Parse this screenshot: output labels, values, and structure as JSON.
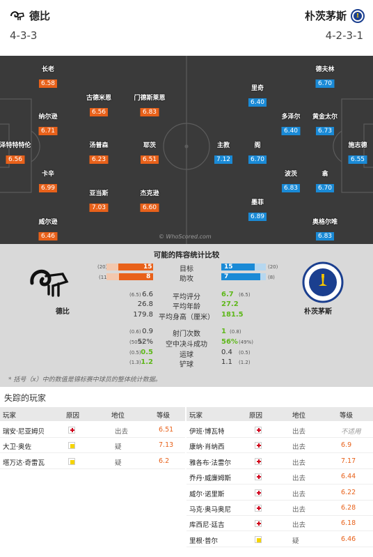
{
  "home": {
    "name": "德比",
    "formation": "4-3-3",
    "players": [
      {
        "name": "长老",
        "rating": "6.58"
      },
      {
        "name": "古德米恩",
        "rating": "6.56"
      },
      {
        "name": "门德斯莱恩",
        "rating": "6.83"
      },
      {
        "name": "纳尔逊",
        "rating": "6.71"
      },
      {
        "name": "泽特特特伦",
        "rating": "6.56"
      },
      {
        "name": "汤普森",
        "rating": "6.23"
      },
      {
        "name": "耶茨",
        "rating": "6.51"
      },
      {
        "name": "卡辛",
        "rating": "6.99"
      },
      {
        "name": "亚当斯",
        "rating": "7.03"
      },
      {
        "name": "杰克逊",
        "rating": "6.60"
      },
      {
        "name": "威尔逊",
        "rating": "6.46"
      }
    ]
  },
  "away": {
    "name": "朴茨茅斯",
    "formation": "4-2-3-1",
    "badge_text": "PORTSMOUTH FOOTBALL CLUB",
    "players": [
      {
        "name": "德夫林",
        "rating": "6.70"
      },
      {
        "name": "里奇",
        "rating": "6.40"
      },
      {
        "name": "多泽尔",
        "rating": "6.40"
      },
      {
        "name": "黄金太尔",
        "rating": "6.73"
      },
      {
        "name": "主教",
        "rating": "7.12"
      },
      {
        "name": "阁",
        "rating": "6.70"
      },
      {
        "name": "施志德",
        "rating": "6.55"
      },
      {
        "name": "波茨",
        "rating": "6.83"
      },
      {
        "name": "翕",
        "rating": "6.70"
      },
      {
        "name": "墨菲",
        "rating": "6.89"
      },
      {
        "name": "奥格尔唯",
        "rating": "6.83"
      }
    ]
  },
  "watermark": "© WhoScored.com",
  "comparison": {
    "title": "可能的阵容统计比较",
    "bars": [
      {
        "label": "目标",
        "home": "15",
        "home_sub": "(20)",
        "away": "15",
        "away_sub": "(20)",
        "home_frac": 0.75,
        "away_frac": 0.75
      },
      {
        "label": "助攻",
        "home": "8",
        "home_sub": "(11)",
        "away": "7",
        "away_sub": "(8)",
        "home_frac": 0.73,
        "away_frac": 0.875
      }
    ],
    "rows": [
      {
        "label": "平均评分",
        "home": "6.6",
        "home_sub": "(6.5)",
        "away": "6.7",
        "away_sub": "(6.5)",
        "home_green": false,
        "away_green": true
      },
      {
        "label": "平均年龄",
        "home": "26.8",
        "home_sub": "",
        "away": "27.2",
        "away_sub": "",
        "home_green": false,
        "away_green": true
      },
      {
        "label": "平均身高（厘米）",
        "home": "179.8",
        "home_sub": "",
        "away": "181.5",
        "away_sub": "",
        "home_green": false,
        "away_green": true
      },
      {
        "label": "射门次数",
        "home": "0.9",
        "home_sub": "(0.6)",
        "away": "1",
        "away_sub": "(0.8)",
        "home_green": false,
        "away_green": true
      },
      {
        "label": "空中决斗成功",
        "home": "52%",
        "home_sub": "(50%)",
        "away": "56%",
        "away_sub": "(49%)",
        "home_green": false,
        "away_green": true
      },
      {
        "label": "运球",
        "home": "0.5",
        "home_sub": "(0.5)",
        "away": "0.4",
        "away_sub": "(0.5)",
        "home_green": true,
        "away_green": false
      },
      {
        "label": "铲球",
        "home": "1.2",
        "home_sub": "(1.3)",
        "away": "1.1",
        "away_sub": "(1.2)",
        "home_green": true,
        "away_green": false
      }
    ],
    "footnote": "* 括号（x）中的数值是锦标赛中球员的整体统计数据。"
  },
  "missing": {
    "title": "失踪的玩家",
    "headers": {
      "player": "玩家",
      "reason": "原因",
      "status": "地位",
      "rating": "等级"
    },
    "home": [
      {
        "player": "瑞安·尼亚姆贝",
        "reason": "injury",
        "status": "出去",
        "rating": "6.51"
      },
      {
        "player": "大卫·奥佐",
        "reason": "doubt",
        "status": "疑",
        "rating": "7.13"
      },
      {
        "player": "塔万达·奇雷瓦",
        "reason": "doubt",
        "status": "疑",
        "rating": "6.2"
      }
    ],
    "away": [
      {
        "player": "伊班·博瓦特",
        "reason": "injury",
        "status": "出去",
        "rating": "不适用"
      },
      {
        "player": "康纳·肖纳西",
        "reason": "injury",
        "status": "出去",
        "rating": "6.9"
      },
      {
        "player": "雅各布·法雷尔",
        "reason": "injury",
        "status": "出去",
        "rating": "7.17"
      },
      {
        "player": "乔丹·威廉姆斯",
        "reason": "injury",
        "status": "出去",
        "rating": "6.44"
      },
      {
        "player": "威尔·诺里斯",
        "reason": "injury",
        "status": "出去",
        "rating": "6.22"
      },
      {
        "player": "马克·奥马奥尼",
        "reason": "injury",
        "status": "出去",
        "rating": "6.28"
      },
      {
        "player": "库西尼·廷吉",
        "reason": "injury",
        "status": "出去",
        "rating": "6.18"
      },
      {
        "player": "里根·普尔",
        "reason": "doubt",
        "status": "疑",
        "rating": "6.46"
      }
    ]
  }
}
